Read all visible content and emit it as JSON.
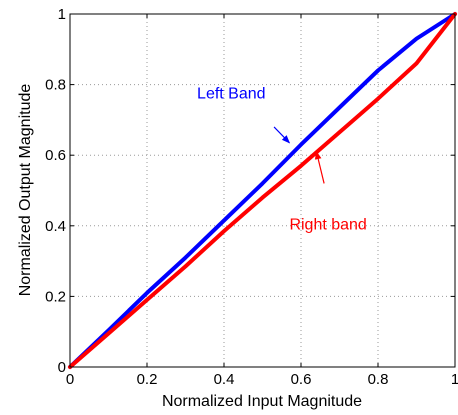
{
  "chart_data": {
    "type": "line",
    "title": "",
    "xlabel": "Normalized Input Magnitude",
    "ylabel": "Normalized Output Magnitude",
    "xlim": [
      0,
      1
    ],
    "ylim": [
      0,
      1
    ],
    "grid": true,
    "xticks": [
      0,
      0.2,
      0.4,
      0.6,
      0.8,
      1
    ],
    "yticks": [
      0,
      0.2,
      0.4,
      0.6,
      0.8,
      1
    ],
    "xtick_labels": [
      "0",
      "0.2",
      "0.4",
      "0.6",
      "0.8",
      "1"
    ],
    "ytick_labels": [
      "0",
      "0.2",
      "0.4",
      "0.6",
      "0.8",
      "1"
    ],
    "series": [
      {
        "color": "#0000ff",
        "x": [
          0,
          0.1,
          0.2,
          0.3,
          0.4,
          0.5,
          0.6,
          0.7,
          0.8,
          0.9,
          1.0
        ],
        "y": [
          0,
          0.104,
          0.21,
          0.31,
          0.415,
          0.52,
          0.63,
          0.735,
          0.84,
          0.93,
          1.0
        ]
      },
      {
        "color": "#ff0000",
        "x": [
          0,
          0.1,
          0.2,
          0.3,
          0.4,
          0.5,
          0.6,
          0.7,
          0.8,
          0.9,
          1.0
        ],
        "y": [
          0,
          0.095,
          0.19,
          0.285,
          0.385,
          0.48,
          0.57,
          0.665,
          0.76,
          0.86,
          1.0
        ]
      }
    ],
    "annotations": [
      {
        "text": "Left Band",
        "color": "#0000ff",
        "text_at": [
          0.33,
          0.76
        ],
        "arrow_from": [
          0.53,
          0.68
        ],
        "arrow_to": [
          0.57,
          0.635
        ]
      },
      {
        "text": "Right band",
        "color": "#ff0000",
        "text_at": [
          0.57,
          0.39
        ],
        "arrow_from": [
          0.66,
          0.52
        ],
        "arrow_to": [
          0.64,
          0.61
        ]
      }
    ]
  }
}
